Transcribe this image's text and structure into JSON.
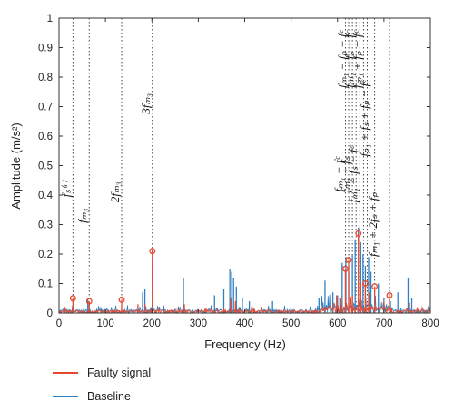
{
  "chart_data": {
    "type": "line",
    "xlabel": "Frequency (Hz)",
    "ylabel": "Amplitude (m/s²)",
    "xlim": [
      0,
      800
    ],
    "ylim": [
      0,
      1
    ],
    "xticks": [
      "0",
      "100",
      "200",
      "300",
      "400",
      "500",
      "600",
      "700",
      "800"
    ],
    "yticks": [
      "0",
      "0.1",
      "0.2",
      "0.3",
      "0.4",
      "0.5",
      "0.6",
      "0.7",
      "0.8",
      "0.9",
      "1"
    ],
    "grid": false,
    "legend_position": "bottom-left",
    "colors": {
      "faulty": "#e8492e",
      "baseline": "#2f7fc2",
      "marker": "#e8492e"
    },
    "series": [
      {
        "name": "Faulty signal",
        "peaks": [
          [
            30,
            0.05
          ],
          [
            65,
            0.04
          ],
          [
            135,
            0.045
          ],
          [
            170,
            0.03
          ],
          [
            185,
            0.03
          ],
          [
            201,
            0.21
          ],
          [
            270,
            0.03
          ],
          [
            370,
            0.05
          ],
          [
            380,
            0.04
          ],
          [
            598,
            0.06
          ],
          [
            605,
            0.05
          ],
          [
            617,
            0.15
          ],
          [
            624,
            0.18
          ],
          [
            632,
            0.06
          ],
          [
            645,
            0.27
          ],
          [
            650,
            0.1
          ],
          [
            660,
            0.1
          ],
          [
            668,
            0.07
          ],
          [
            680,
            0.09
          ],
          [
            700,
            0.04
          ],
          [
            712,
            0.06
          ],
          [
            755,
            0.035
          ]
        ]
      },
      {
        "name": "Baseline",
        "peaks": [
          [
            30,
            0.02
          ],
          [
            62,
            0.045
          ],
          [
            65,
            0.04
          ],
          [
            90,
            0.02
          ],
          [
            180,
            0.07
          ],
          [
            185,
            0.08
          ],
          [
            201,
            0.17
          ],
          [
            268,
            0.12
          ],
          [
            335,
            0.06
          ],
          [
            355,
            0.08
          ],
          [
            368,
            0.15
          ],
          [
            372,
            0.14
          ],
          [
            376,
            0.12
          ],
          [
            382,
            0.09
          ],
          [
            395,
            0.05
          ],
          [
            410,
            0.04
          ],
          [
            460,
            0.04
          ],
          [
            560,
            0.05
          ],
          [
            573,
            0.11
          ],
          [
            590,
            0.07
          ],
          [
            600,
            0.06
          ],
          [
            610,
            0.17
          ],
          [
            618,
            0.19
          ],
          [
            624,
            0.14
          ],
          [
            632,
            0.2
          ],
          [
            638,
            0.25
          ],
          [
            645,
            0.29
          ],
          [
            650,
            0.24
          ],
          [
            655,
            0.2
          ],
          [
            660,
            0.16
          ],
          [
            667,
            0.19
          ],
          [
            672,
            0.14
          ],
          [
            688,
            0.1
          ],
          [
            700,
            0.05
          ],
          [
            714,
            0.04
          ],
          [
            730,
            0.07
          ],
          [
            752,
            0.12
          ],
          [
            760,
            0.05
          ]
        ]
      }
    ],
    "markers": [
      [
        30,
        0.05
      ],
      [
        65,
        0.04
      ],
      [
        135,
        0.045
      ],
      [
        201,
        0.21
      ],
      [
        617,
        0.15
      ],
      [
        624,
        0.18
      ],
      [
        645,
        0.27
      ],
      [
        660,
        0.1
      ],
      [
        680,
        0.09
      ],
      [
        712,
        0.06
      ]
    ],
    "vlines": [
      30,
      65,
      135,
      201,
      617,
      624,
      632,
      640,
      648,
      656,
      664,
      680,
      712
    ]
  },
  "annotations": [
    {
      "x": 30,
      "y": 0.42,
      "text": "fₛ⁽ʳ⁾"
    },
    {
      "x": 65,
      "y": 0.33,
      "text": "fₘ₃"
    },
    {
      "x": 135,
      "y": 0.41,
      "text": "2fₘ₃"
    },
    {
      "x": 201,
      "y": 0.71,
      "text": "3fₘ₃"
    },
    {
      "x": 617,
      "y": 0.47,
      "text": "fₘ₁ − fᶜ"
    },
    {
      "x": 632,
      "y": 0.47,
      "text": "fₘ₁ + fₛ"
    },
    {
      "x": 648,
      "y": 0.47,
      "text": "fₘ₁ + fₛ − fᶜ"
    },
    {
      "x": 625,
      "y": 0.86,
      "text": "fₘ₁ − fₚ − fᶜ"
    },
    {
      "x": 641,
      "y": 0.86,
      "text": "fₘ₁ − fₛ − fᶜ"
    },
    {
      "x": 657,
      "y": 0.86,
      "text": "fₘ₁ + fₚ − fᶜ"
    },
    {
      "x": 673,
      "y": 0.66,
      "text": "fₚ₁ + fₛ + fₚ − fᶜ"
    },
    {
      "x": 690,
      "y": 0.3,
      "text": "fₘ₁ + 2fₛ + fₚ"
    }
  ],
  "legend": [
    {
      "label": "Faulty signal",
      "color": "#e8492e"
    },
    {
      "label": "Baseline",
      "color": "#2f7fc2"
    }
  ]
}
